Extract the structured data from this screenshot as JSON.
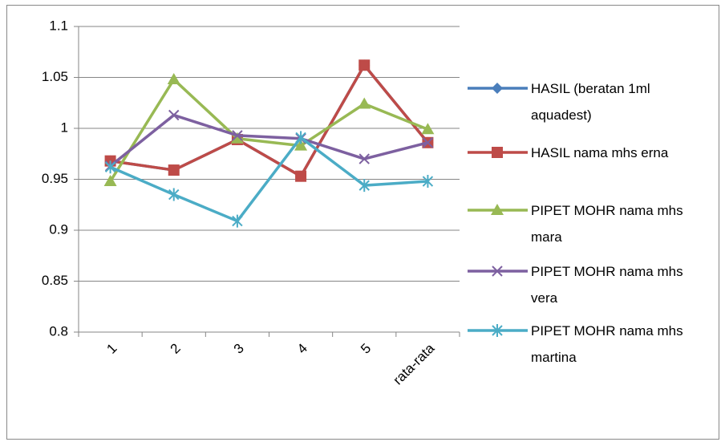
{
  "chart_data": {
    "type": "line",
    "categories": [
      "1",
      "2",
      "3",
      "4",
      "5",
      "rata-rata"
    ],
    "series": [
      {
        "name": "HASIL (beratan 1ml aquadest)",
        "color": "#4a7ebb",
        "marker": "diamond",
        "values": [
          0.968,
          0.959,
          0.989,
          0.953,
          1.062,
          0.986
        ]
      },
      {
        "name": "HASIL nama mhs erna",
        "color": "#be4b48",
        "marker": "square",
        "values": [
          0.968,
          0.959,
          0.989,
          0.953,
          1.062,
          0.986
        ]
      },
      {
        "name": "PIPET MOHR nama mhs mara",
        "color": "#98b954",
        "marker": "triangle",
        "values": [
          0.948,
          1.048,
          0.99,
          0.983,
          1.024,
          0.999
        ]
      },
      {
        "name": "PIPET MOHR nama mhs vera",
        "color": "#7d60a0",
        "marker": "x",
        "values": [
          0.963,
          1.013,
          0.993,
          0.99,
          0.97,
          0.986
        ]
      },
      {
        "name": "PIPET MOHR nama mhs martina",
        "color": "#4bacc6",
        "marker": "star",
        "values": [
          0.962,
          0.935,
          0.909,
          0.991,
          0.944,
          0.948
        ]
      }
    ],
    "ylim": [
      0.8,
      1.1
    ],
    "yticks": [
      0.8,
      0.85,
      0.9,
      0.95,
      1,
      1.05,
      1.1
    ],
    "grid": true,
    "legend": "right"
  }
}
